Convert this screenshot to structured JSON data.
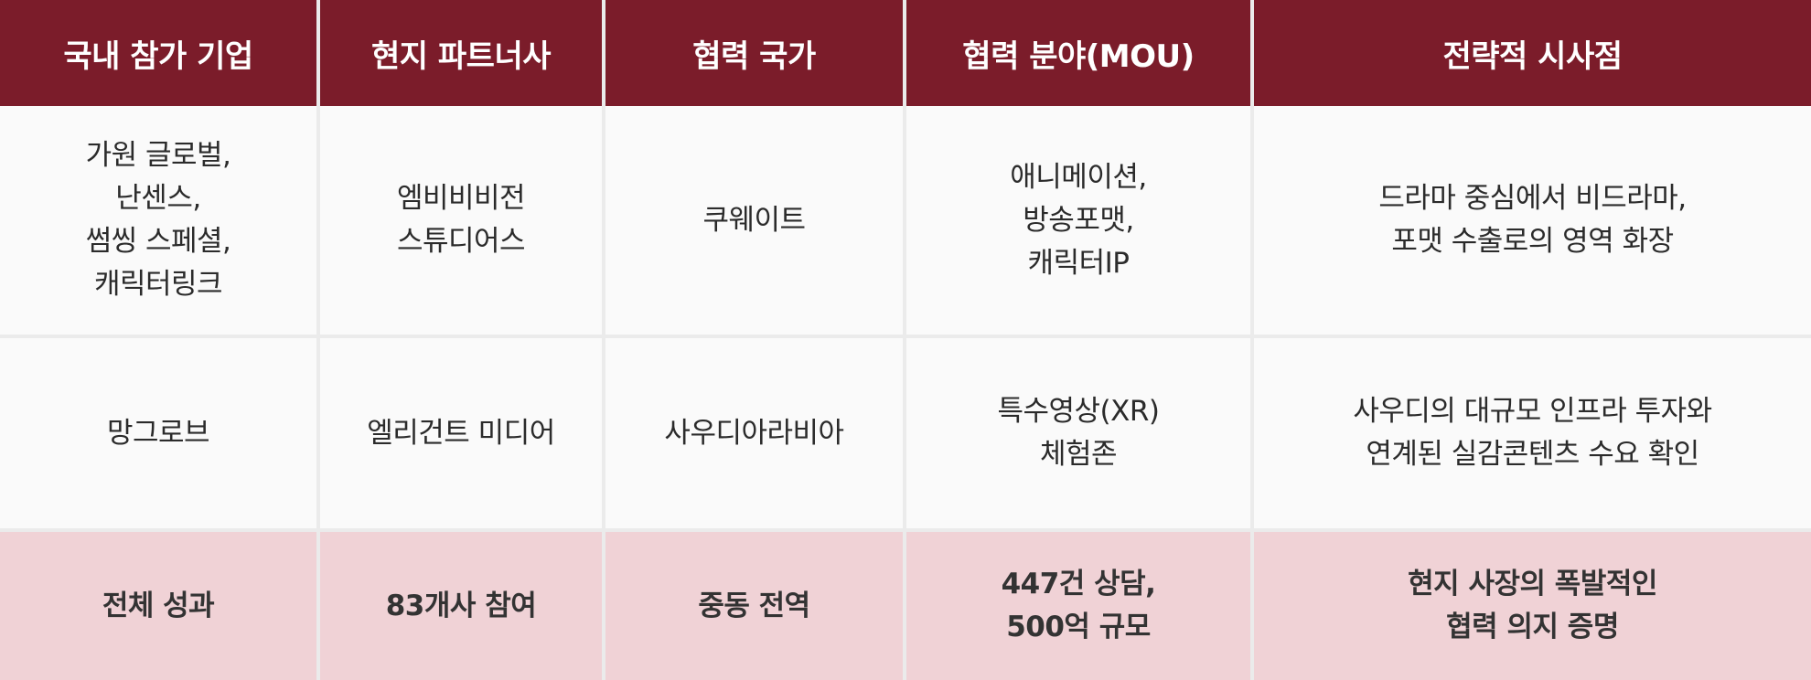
{
  "table": {
    "headers": [
      "국내 참가 기업",
      "현지 파트너사",
      "협력 국가",
      "협력 분야(MOU)",
      "전략적 시사점"
    ],
    "rows": [
      [
        "가원 글로벌,\n난센스,\n썸씽 스페셜,\n캐릭터링크",
        "엠비비비전\n스튜디어스",
        "쿠웨이트",
        "애니메이션,\n방송포맷,\n캐릭터IP",
        "드라마 중심에서 비드라마,\n포맷 수출로의 영역 화장"
      ],
      [
        "망그로브",
        "엘리건트 미디어",
        "사우디아라비아",
        "특수영상(XR)\n체험존",
        "사우디의 대규모 인프라 투자와\n연계된 실감콘텐츠 수요 확인"
      ]
    ],
    "summary": [
      "전체 성과",
      "83개사 참여",
      "중동 전역",
      "447건 상담,\n500억 규모",
      "현지 사장의 폭발적인\n협력 의지 증명"
    ]
  },
  "colors": {
    "header_bg": "#7b1c2a",
    "header_text": "#ffffff",
    "cell_bg": "#fafafa",
    "summary_bg": "#f0d2d6",
    "grid": "#ebebeb"
  }
}
